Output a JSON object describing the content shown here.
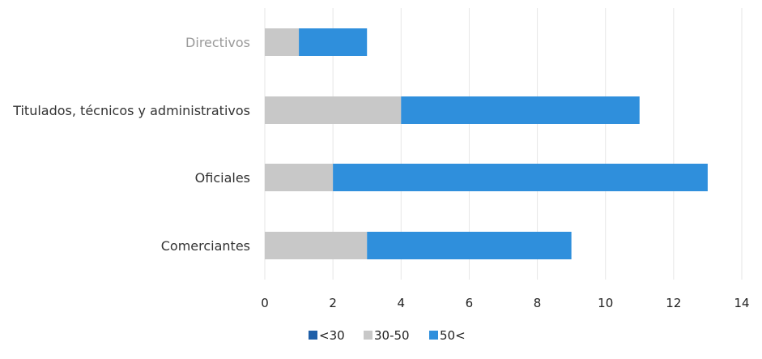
{
  "chart_data": {
    "type": "bar",
    "orientation": "horizontal",
    "stacked": true,
    "title": "",
    "xlabel": "",
    "ylabel": "",
    "categories": [
      "Directivos",
      "Titulados, técnicos y administrativos",
      "Oficiales",
      "Comerciantes"
    ],
    "series": [
      {
        "name": "<30",
        "color": "#1f5fa8",
        "values": [
          0,
          0,
          0,
          0
        ]
      },
      {
        "name": "30-50",
        "color": "#c8c8c8",
        "values": [
          1,
          4,
          2,
          3
        ]
      },
      {
        "name": "50<",
        "color": "#2f8fdc",
        "values": [
          2,
          7,
          11,
          6
        ]
      }
    ],
    "xlim": [
      0,
      14
    ],
    "xticks": [
      0,
      2,
      4,
      6,
      8,
      10,
      12,
      14
    ],
    "grid": true,
    "legend_position": "bottom"
  }
}
